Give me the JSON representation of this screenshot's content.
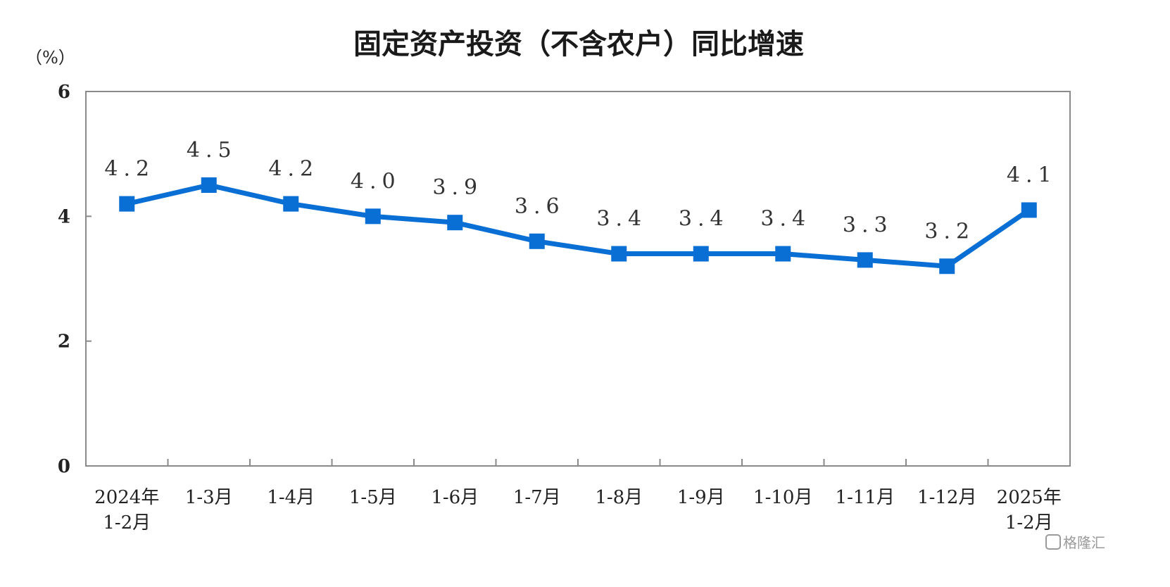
{
  "chart_data": {
    "type": "line",
    "title": "固定资产投资（不含农户）同比增速",
    "unit_label": "（%）",
    "ylim": [
      0,
      6
    ],
    "yticks": [
      "0",
      "2",
      "4",
      "6"
    ],
    "categories": [
      [
        "2024年",
        "1-2月"
      ],
      [
        "1-3月"
      ],
      [
        "1-4月"
      ],
      [
        "1-5月"
      ],
      [
        "1-6月"
      ],
      [
        "1-7月"
      ],
      [
        "1-8月"
      ],
      [
        "1-9月"
      ],
      [
        "1-10月"
      ],
      [
        "1-11月"
      ],
      [
        "1-12月"
      ],
      [
        "2025年",
        "1-2月"
      ]
    ],
    "series": [
      {
        "name": "同比增速",
        "values": [
          4.2,
          4.5,
          4.2,
          4.0,
          3.9,
          3.6,
          3.4,
          3.4,
          3.4,
          3.3,
          3.2,
          4.1
        ],
        "labels": [
          "4.2",
          "4.5",
          "4.2",
          "4.0",
          "3.9",
          "3.6",
          "3.4",
          "3.4",
          "3.4",
          "3.3",
          "3.2",
          "4.1"
        ],
        "color": "#0a6fd4"
      }
    ]
  },
  "watermark": "格隆汇",
  "colors": {
    "axis": "#8a8a8a",
    "line": "#0a6fd4"
  }
}
